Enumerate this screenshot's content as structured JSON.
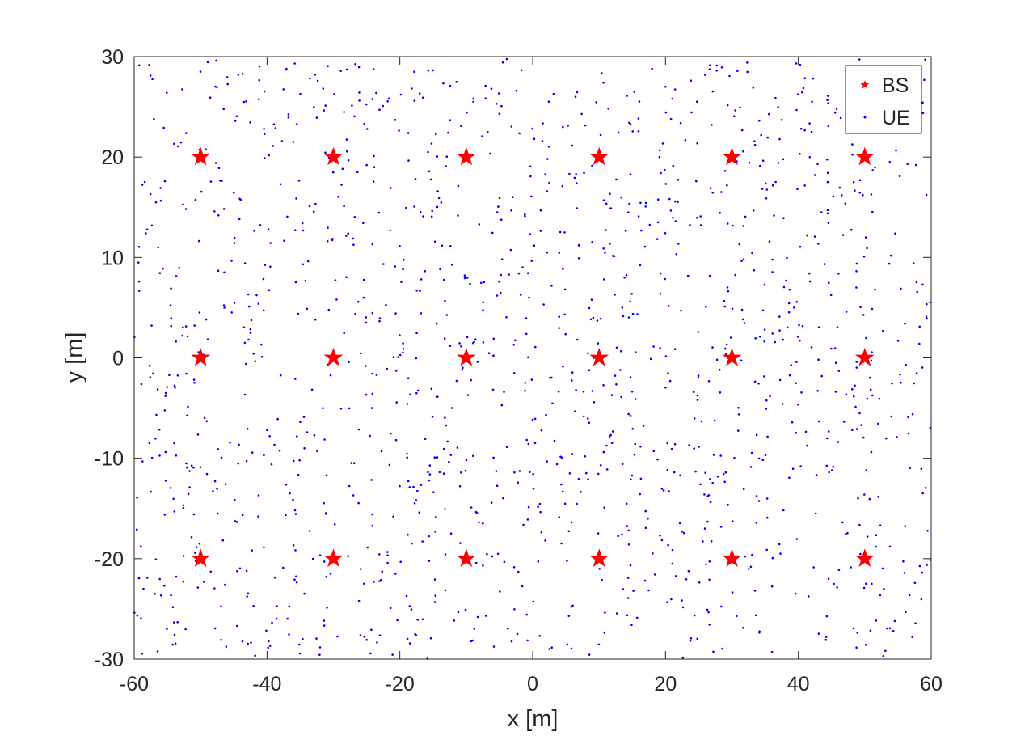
{
  "chart_data": {
    "type": "scatter",
    "xlabel": "x [m]",
    "ylabel": "y [m]",
    "xlim": [
      -60,
      60
    ],
    "ylim": [
      -30,
      30
    ],
    "xticks": [
      -60,
      -40,
      -20,
      0,
      20,
      40,
      60
    ],
    "yticks": [
      -30,
      -20,
      -10,
      0,
      10,
      20,
      30
    ],
    "xtick_labels": [
      "-60",
      "-40",
      "-20",
      "0",
      "20",
      "40",
      "60"
    ],
    "ytick_labels": [
      "-30",
      "-20",
      "-10",
      "0",
      "10",
      "20",
      "30"
    ],
    "grid": false,
    "legend_position": "top-right",
    "series": [
      {
        "name": "BS",
        "color": "#ff0000",
        "marker": "star",
        "points": [
          [
            -50,
            20
          ],
          [
            -30,
            20
          ],
          [
            -10,
            20
          ],
          [
            10,
            20
          ],
          [
            30,
            20
          ],
          [
            50,
            20
          ],
          [
            -50,
            0
          ],
          [
            -30,
            0
          ],
          [
            -10,
            0
          ],
          [
            10,
            0
          ],
          [
            30,
            0
          ],
          [
            50,
            0
          ],
          [
            -50,
            -20
          ],
          [
            -30,
            -20
          ],
          [
            -10,
            -20
          ],
          [
            10,
            -20
          ],
          [
            30,
            -20
          ],
          [
            50,
            -20
          ]
        ]
      },
      {
        "name": "UE",
        "color": "#0000ff",
        "marker": "dot",
        "count": 1500,
        "distribution": "uniform",
        "x_range": [
          -60,
          60
        ],
        "y_range": [
          -30,
          30
        ]
      }
    ]
  }
}
